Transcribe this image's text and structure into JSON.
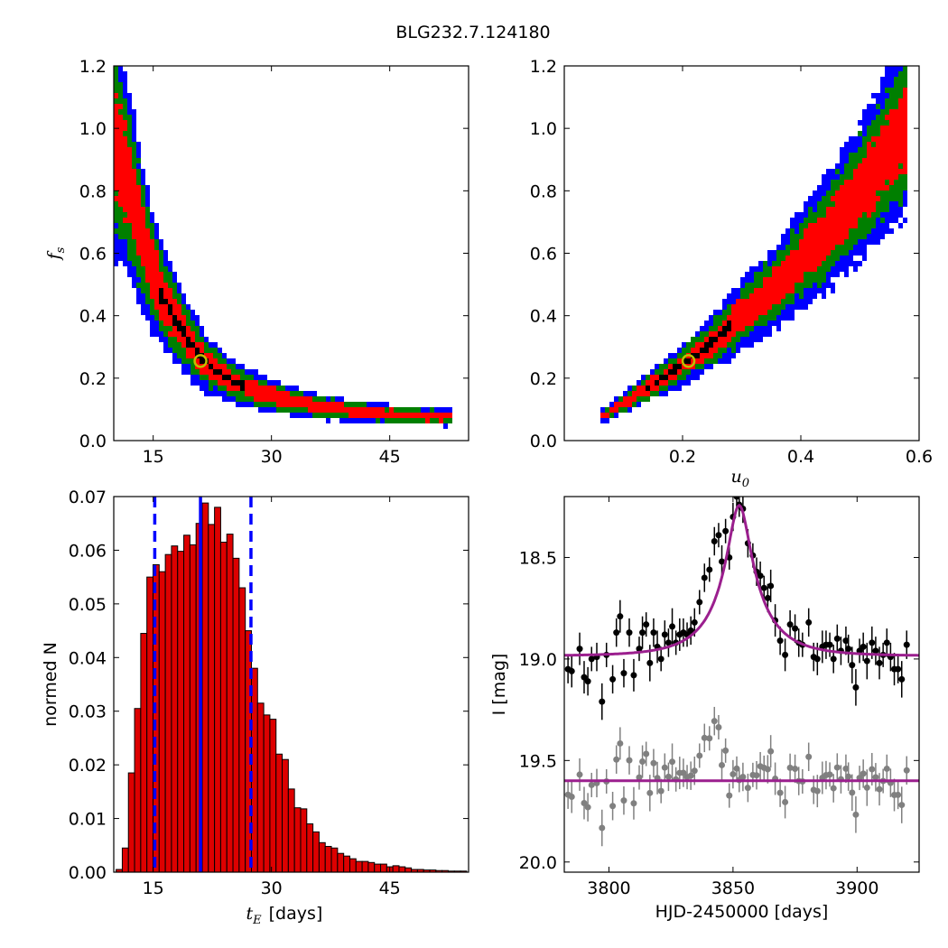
{
  "figure_title": "BLG232.7.124180",
  "colors": {
    "blue": "#0000ff",
    "green": "#007f00",
    "red": "#ff0000",
    "black": "#000000",
    "marker_ring": "#bfbf00",
    "hist_fill": "#dd0000",
    "model": "#9b1f8e",
    "resid": "#808080"
  },
  "chart_data": [
    {
      "panel": "top-left",
      "type": "heatmap",
      "xlabel": "",
      "ylabel_sym": "f",
      "ylabel_sub": "s",
      "xlim": [
        10,
        55
      ],
      "ylim": [
        0.0,
        1.2
      ],
      "xticks": [
        15,
        30,
        45
      ],
      "xticklabels": [
        "15",
        "30",
        "45"
      ],
      "yticks": [
        0.0,
        0.2,
        0.4,
        0.6,
        0.8,
        1.0,
        1.2
      ],
      "yticklabels": [
        "0.0",
        "0.2",
        "0.4",
        "0.6",
        "0.8",
        "1.0",
        "1.2"
      ],
      "best_fit": {
        "x": 21,
        "y": 0.255
      },
      "ridge": [
        [
          10.3,
          0.94
        ],
        [
          11.5,
          0.86
        ],
        [
          12.5,
          0.77
        ],
        [
          13.5,
          0.66
        ],
        [
          14.5,
          0.57
        ],
        [
          16,
          0.47
        ],
        [
          18,
          0.38
        ],
        [
          20,
          0.3
        ],
        [
          22,
          0.24
        ],
        [
          25,
          0.19
        ],
        [
          28,
          0.16
        ],
        [
          32,
          0.13
        ],
        [
          37,
          0.105
        ],
        [
          42,
          0.09
        ],
        [
          47,
          0.08
        ],
        [
          53,
          0.075
        ]
      ],
      "levels": [
        "blue",
        "green",
        "red",
        "black"
      ]
    },
    {
      "panel": "top-right",
      "type": "heatmap",
      "xlabel_sym": "u",
      "xlabel_sub": "0",
      "ylabel": "",
      "xlim": [
        0.0,
        0.6
      ],
      "ylim": [
        0.0,
        1.2
      ],
      "xticks": [
        0.2,
        0.4,
        0.6
      ],
      "xticklabels": [
        "0.2",
        "0.4",
        "0.6"
      ],
      "yticks": [
        0.0,
        0.2,
        0.4,
        0.6,
        0.8,
        1.0,
        1.2
      ],
      "yticklabels": [
        "0.0",
        "0.2",
        "0.4",
        "0.6",
        "0.8",
        "1.0",
        "1.2"
      ],
      "best_fit": {
        "x": 0.21,
        "y": 0.255
      },
      "ridge": [
        [
          0.07,
          0.08
        ],
        [
          0.1,
          0.12
        ],
        [
          0.15,
          0.18
        ],
        [
          0.21,
          0.255
        ],
        [
          0.26,
          0.33
        ],
        [
          0.3,
          0.4
        ],
        [
          0.35,
          0.48
        ],
        [
          0.4,
          0.58
        ],
        [
          0.45,
          0.68
        ],
        [
          0.5,
          0.8
        ],
        [
          0.55,
          0.93
        ],
        [
          0.58,
          1.0
        ]
      ],
      "levels": [
        "blue",
        "green",
        "red",
        "black"
      ]
    },
    {
      "panel": "bottom-left",
      "type": "bar",
      "xlabel_sym": "t",
      "xlabel_sub": "E",
      "xlabel_rest": "[days]",
      "ylabel": "normed N",
      "xlim": [
        10,
        55
      ],
      "ylim": [
        0.0,
        0.07
      ],
      "xticks": [
        15,
        30,
        45
      ],
      "xticklabels": [
        "15",
        "30",
        "45"
      ],
      "yticks": [
        0.0,
        0.01,
        0.02,
        0.03,
        0.04,
        0.05,
        0.06,
        0.07
      ],
      "yticklabels": [
        "0.00",
        "0.01",
        "0.02",
        "0.03",
        "0.04",
        "0.05",
        "0.06",
        "0.07"
      ],
      "bin_start": 10.3,
      "bin_width": 0.78,
      "values": [
        0.0005,
        0.0045,
        0.0185,
        0.0305,
        0.0445,
        0.055,
        0.0573,
        0.056,
        0.0592,
        0.0608,
        0.0598,
        0.0628,
        0.061,
        0.065,
        0.0688,
        0.0648,
        0.068,
        0.0615,
        0.063,
        0.0585,
        0.053,
        0.045,
        0.038,
        0.0315,
        0.0293,
        0.0285,
        0.022,
        0.021,
        0.0155,
        0.012,
        0.0118,
        0.009,
        0.0075,
        0.0055,
        0.0048,
        0.0045,
        0.0035,
        0.003,
        0.0025,
        0.002,
        0.002,
        0.0018,
        0.0015,
        0.0015,
        0.001,
        0.0012,
        0.001,
        0.0008,
        0.0005,
        0.0005,
        0.0004,
        0.0004,
        0.0003,
        0.0003,
        0.0002,
        0.0002,
        0.0002
      ],
      "vlines_dashed": [
        15.2,
        27.4
      ],
      "vline_solid": 21.0
    },
    {
      "panel": "bottom-right",
      "type": "scatter",
      "xlabel": "HJD-2450000 [days]",
      "ylabel": "I [mag]",
      "xlim": [
        3782,
        3925
      ],
      "ylim": [
        20.05,
        18.2
      ],
      "xticks": [
        3800,
        3850,
        3900
      ],
      "xticklabels": [
        "3800",
        "3850",
        "3900"
      ],
      "yticks": [
        18.5,
        19.0,
        19.5,
        20.0
      ],
      "yticklabels": [
        "18.5",
        "19.0",
        "19.5",
        "20.0"
      ],
      "model": {
        "t0": 3852.5,
        "tE": 21,
        "u0": 0.21,
        "fs": 0.255,
        "i_base": 18.985
      },
      "resid_baseline": 19.6,
      "data": [
        [
          3783.5,
          19.05,
          0.07
        ],
        [
          3785.0,
          19.06,
          0.08
        ],
        [
          3788.2,
          18.95,
          0.08
        ],
        [
          3790.0,
          19.09,
          0.08
        ],
        [
          3791.5,
          19.11,
          0.07
        ],
        [
          3793.0,
          19.0,
          0.06
        ],
        [
          3795.1,
          18.99,
          0.07
        ],
        [
          3797.2,
          19.21,
          0.09
        ],
        [
          3799.0,
          18.98,
          0.06
        ],
        [
          3801.5,
          19.1,
          0.07
        ],
        [
          3803.0,
          18.87,
          0.07
        ],
        [
          3804.5,
          18.79,
          0.08
        ],
        [
          3806.0,
          19.07,
          0.07
        ],
        [
          3808.2,
          18.87,
          0.07
        ],
        [
          3810.0,
          19.08,
          0.08
        ],
        [
          3812.2,
          18.95,
          0.06
        ],
        [
          3813.5,
          18.87,
          0.08
        ],
        [
          3815.0,
          18.83,
          0.06
        ],
        [
          3816.5,
          19.02,
          0.09
        ],
        [
          3818.0,
          18.87,
          0.07
        ],
        [
          3819.5,
          18.94,
          0.08
        ],
        [
          3821.0,
          19.0,
          0.06
        ],
        [
          3822.5,
          18.88,
          0.07
        ],
        [
          3824.0,
          18.92,
          0.07
        ],
        [
          3825.5,
          18.84,
          0.09
        ],
        [
          3827.0,
          18.92,
          0.06
        ],
        [
          3828.5,
          18.88,
          0.08
        ],
        [
          3830.0,
          18.87,
          0.07
        ],
        [
          3831.5,
          18.88,
          0.06
        ],
        [
          3833.0,
          18.86,
          0.07
        ],
        [
          3834.5,
          18.82,
          0.07
        ],
        [
          3836.5,
          18.72,
          0.06
        ],
        [
          3838.5,
          18.6,
          0.07
        ],
        [
          3840.5,
          18.56,
          0.06
        ],
        [
          3842.5,
          18.42,
          0.07
        ],
        [
          3844.2,
          18.39,
          0.06
        ],
        [
          3845.5,
          18.52,
          0.08
        ],
        [
          3847.0,
          18.37,
          0.06
        ],
        [
          3848.5,
          18.5,
          0.06
        ],
        [
          3850.0,
          18.3,
          0.07
        ],
        [
          3851.5,
          18.2,
          0.06
        ],
        [
          3852.5,
          18.24,
          0.06
        ],
        [
          3854.0,
          18.26,
          0.07
        ],
        [
          3856.0,
          18.43,
          0.07
        ],
        [
          3858.0,
          18.49,
          0.06
        ],
        [
          3859.5,
          18.57,
          0.07
        ],
        [
          3861.0,
          18.59,
          0.07
        ],
        [
          3862.5,
          18.65,
          0.06
        ],
        [
          3864.0,
          18.7,
          0.07
        ],
        [
          3865.2,
          18.64,
          0.08
        ],
        [
          3867.0,
          18.81,
          0.08
        ],
        [
          3869.0,
          18.91,
          0.07
        ],
        [
          3871.0,
          18.98,
          0.08
        ],
        [
          3873.0,
          18.83,
          0.07
        ],
        [
          3875.0,
          18.85,
          0.07
        ],
        [
          3876.5,
          18.92,
          0.07
        ],
        [
          3878.0,
          18.93,
          0.06
        ],
        [
          3880.5,
          18.82,
          0.07
        ],
        [
          3882.5,
          18.99,
          0.07
        ],
        [
          3884.0,
          19.0,
          0.08
        ],
        [
          3886.0,
          18.94,
          0.08
        ],
        [
          3887.5,
          18.93,
          0.07
        ],
        [
          3889.0,
          18.93,
          0.06
        ],
        [
          3890.5,
          19.0,
          0.07
        ],
        [
          3892.0,
          18.9,
          0.07
        ],
        [
          3893.5,
          18.96,
          0.07
        ],
        [
          3895.5,
          18.91,
          0.07
        ],
        [
          3896.5,
          18.95,
          0.07
        ],
        [
          3898.0,
          19.03,
          0.09
        ],
        [
          3899.5,
          19.14,
          0.09
        ],
        [
          3901.0,
          18.96,
          0.06
        ],
        [
          3902.5,
          18.94,
          0.07
        ],
        [
          3904.0,
          19.01,
          0.09
        ],
        [
          3906.0,
          18.92,
          0.08
        ],
        [
          3907.5,
          18.96,
          0.07
        ],
        [
          3909.0,
          19.02,
          0.08
        ],
        [
          3910.5,
          18.98,
          0.06
        ],
        [
          3912.0,
          18.92,
          0.07
        ],
        [
          3913.5,
          18.99,
          0.07
        ],
        [
          3915.0,
          19.05,
          0.08
        ],
        [
          3916.5,
          19.05,
          0.07
        ],
        [
          3918.0,
          19.1,
          0.09
        ],
        [
          3920.0,
          18.93,
          0.07
        ]
      ]
    }
  ]
}
